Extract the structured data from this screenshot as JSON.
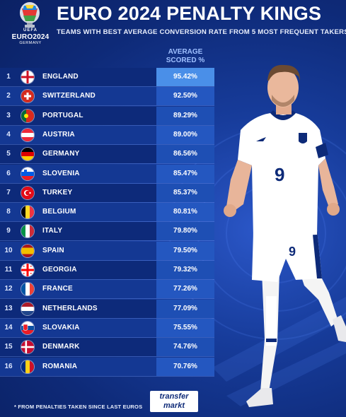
{
  "header": {
    "title": "EURO 2024 PENALTY KINGS",
    "subtitle": "TEAMS WITH BEST AVERAGE CONVERSION RATE FROM 5 MOST FREQUENT TAKERS"
  },
  "logo": {
    "uefa": "UEFA",
    "euro": "EURO2024",
    "country": "GERMANY"
  },
  "table": {
    "column_header": "AVERAGE SCORED %"
  },
  "chart_data": {
    "type": "table",
    "title": "EURO 2024 PENALTY KINGS",
    "subtitle": "TEAMS WITH BEST AVERAGE CONVERSION RATE FROM 5 MOST FREQUENT TAKERS",
    "columns": [
      "",
      "",
      "AVERAGE SCORED %"
    ],
    "rows": [
      {
        "rank": "1",
        "team": "ENGLAND",
        "flag": "england",
        "value": "95.42%",
        "highlight": true
      },
      {
        "rank": "2",
        "team": "SWITZERLAND",
        "flag": "switzerland",
        "value": "92.50%",
        "highlight": false
      },
      {
        "rank": "3",
        "team": "PORTUGAL",
        "flag": "portugal",
        "value": "89.29%",
        "highlight": false
      },
      {
        "rank": "4",
        "team": "AUSTRIA",
        "flag": "austria",
        "value": "89.00%",
        "highlight": false
      },
      {
        "rank": "5",
        "team": "GERMANY",
        "flag": "germany",
        "value": "86.56%",
        "highlight": false
      },
      {
        "rank": "6",
        "team": "SLOVENIA",
        "flag": "slovenia",
        "value": "85.47%",
        "highlight": false
      },
      {
        "rank": "7",
        "team": "TURKEY",
        "flag": "turkey",
        "value": "85.37%",
        "highlight": false
      },
      {
        "rank": "8",
        "team": "BELGIUM",
        "flag": "belgium",
        "value": "80.81%",
        "highlight": false
      },
      {
        "rank": "9",
        "team": "ITALY",
        "flag": "italy",
        "value": "79.80%",
        "highlight": false
      },
      {
        "rank": "10",
        "team": "SPAIN",
        "flag": "spain",
        "value": "79.50%",
        "highlight": false
      },
      {
        "rank": "11",
        "team": "GEORGIA",
        "flag": "georgia",
        "value": "79.32%",
        "highlight": false
      },
      {
        "rank": "12",
        "team": "FRANCE",
        "flag": "france",
        "value": "77.26%",
        "highlight": false
      },
      {
        "rank": "13",
        "team": "NETHERLANDS",
        "flag": "netherlands",
        "value": "77.09%",
        "highlight": false
      },
      {
        "rank": "14",
        "team": "SLOVAKIA",
        "flag": "slovakia",
        "value": "75.55%",
        "highlight": false
      },
      {
        "rank": "15",
        "team": "DENMARK",
        "flag": "denmark",
        "value": "74.76%",
        "highlight": false
      },
      {
        "rank": "16",
        "team": "ROMANIA",
        "flag": "romania",
        "value": "70.76%",
        "highlight": false
      }
    ]
  },
  "footer": {
    "footnote": "* FROM PENALTIES TAKEN SINCE LAST EUROS",
    "brand_line1": "transfer",
    "brand_line2": "markt"
  },
  "colors": {
    "background": "#143a98",
    "row_dark": "#0d2a7a",
    "row_light": "#143893",
    "value_cell": "#1e4fb4",
    "value_cell_alt": "#2457c0",
    "highlight": "#4a8fe8",
    "column_header": "#9fc0ff"
  },
  "player": {
    "shirt_number": "9"
  }
}
